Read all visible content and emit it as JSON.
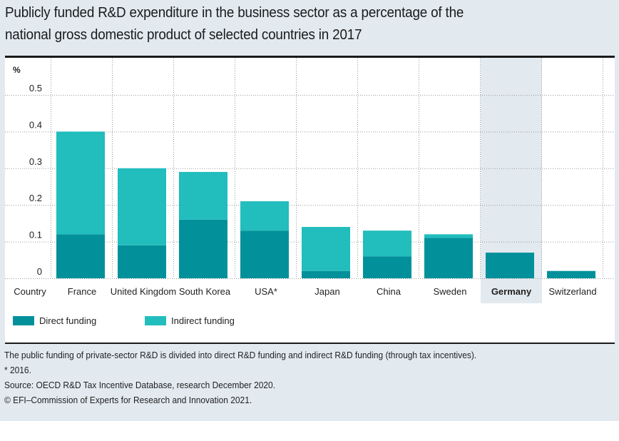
{
  "title_lines": [
    "Publicly funded R&D expenditure in the business sector as a percentage of the",
    "national gross domestic product of selected countries in 2017"
  ],
  "colors": {
    "direct": "#02919b",
    "indirect": "#22bdbd",
    "highlight_bg": "#e2eaf0",
    "grid": "#9a9a9a"
  },
  "chart_data": {
    "type": "bar",
    "stacked": true,
    "title": "Publicly funded R&D expenditure in the business sector as a percentage of the national gross domestic product of selected countries in 2017",
    "xlabel": "Country",
    "ylabel": "%",
    "ylim": [
      0,
      0.5
    ],
    "yticks": [
      "0",
      "0.1",
      "0.2",
      "0.3",
      "0.4",
      "0.5"
    ],
    "ytick_values": [
      0,
      0.1,
      0.2,
      0.3,
      0.4,
      0.5
    ],
    "grid": true,
    "categories": [
      "France",
      "United Kingdom",
      "South Korea",
      "USA*",
      "Japan",
      "China",
      "Sweden",
      "Germany",
      "Switzerland"
    ],
    "highlighted_category": "Germany",
    "series": [
      {
        "name": "Direct funding",
        "key": "direct",
        "values": [
          0.12,
          0.09,
          0.16,
          0.13,
          0.02,
          0.06,
          0.11,
          0.07,
          0.02
        ]
      },
      {
        "name": "Indirect funding",
        "key": "indirect",
        "values": [
          0.28,
          0.21,
          0.13,
          0.08,
          0.12,
          0.07,
          0.01,
          0.0,
          0.0
        ]
      }
    ],
    "legend": [
      "Direct funding",
      "Indirect funding"
    ],
    "legend_position": "bottom-left"
  },
  "notes": [
    "The public funding of private-sector R&D is divided into direct R&D funding and indirect R&D funding (through tax incentives).",
    "* 2016.",
    "Source: OECD R&D Tax Incentive Database, research December 2020.",
    "© EFI–Commission of Experts for Research and Innovation 2021."
  ]
}
